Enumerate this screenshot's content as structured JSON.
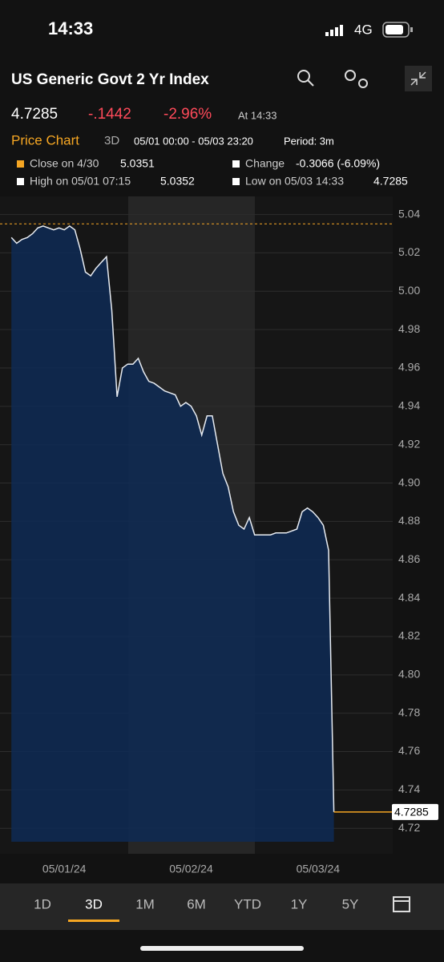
{
  "status_bar": {
    "time": "14:33",
    "network": "4G"
  },
  "header": {
    "title": "US Generic Govt 2 Yr Index"
  },
  "quote": {
    "price": "4.7285",
    "change": "-.1442",
    "change_pct": "-2.96%",
    "time": "At 14:33"
  },
  "chart_header": {
    "title": "Price Chart",
    "range": "3D",
    "window": "05/01 00:00 - 05/03 23:20",
    "period": "Period: 3m"
  },
  "legend": {
    "close_label": "Close on 4/30",
    "close_value": 5.0351,
    "change_label": "Change",
    "change_value": "-0.3066 (-6.09%)",
    "high_label": "High on 05/01 07:15",
    "high_value": 5.0352,
    "low_label": "Low on 05/03 14:33",
    "low_value": 4.7285
  },
  "chart_data": {
    "type": "area",
    "color": "#e8ecf2",
    "fill": "#0e2a55",
    "categories": [
      null,
      null,
      null,
      null,
      null,
      null,
      null,
      null,
      null,
      null,
      null,
      null,
      "05/01/24",
      null,
      null,
      null,
      null,
      null,
      null,
      null,
      null,
      null,
      null,
      null,
      null,
      null,
      null,
      null,
      null,
      null,
      null,
      null,
      null,
      null,
      null,
      null,
      "05/02/24",
      null,
      null,
      null,
      null,
      null,
      null,
      null,
      null,
      null,
      null,
      null,
      null,
      null,
      null,
      null,
      null,
      null,
      null,
      null,
      null,
      null,
      null,
      null,
      "05/03/24",
      null,
      null,
      null,
      null,
      null,
      null,
      null,
      null,
      null,
      null,
      null
    ],
    "values": [
      null,
      null,
      5.028,
      5.025,
      5.027,
      5.028,
      5.03,
      5.033,
      5.034,
      5.033,
      5.032,
      5.033,
      5.032,
      5.034,
      5.032,
      5.022,
      5.01,
      5.008,
      5.012,
      5.015,
      5.018,
      4.99,
      4.945,
      4.96,
      4.962,
      4.962,
      4.965,
      4.958,
      4.953,
      4.952,
      4.95,
      4.948,
      4.947,
      4.946,
      4.94,
      4.942,
      4.94,
      4.935,
      4.925,
      4.935,
      4.935,
      4.92,
      4.905,
      4.898,
      4.885,
      4.878,
      4.876,
      4.882,
      4.873,
      4.873,
      4.873,
      4.873,
      4.874,
      4.874,
      4.874,
      4.875,
      4.876,
      4.885,
      4.887,
      4.885,
      4.882,
      4.878,
      4.865,
      4.7285,
      null,
      null,
      null,
      null,
      null,
      null,
      null,
      null
    ],
    "ylim": [
      4.713,
      5.044
    ],
    "yticks": [
      4.72,
      4.74,
      4.76,
      4.78,
      {
        "value": 4.8,
        "label": "4.80"
      },
      4.82,
      4.84,
      4.86,
      4.88,
      {
        "value": 4.9,
        "label": "4.90"
      },
      4.92,
      4.94,
      4.96,
      4.98,
      {
        "value": 5,
        "label": "5.00"
      },
      5.02,
      5.04
    ],
    "grid": true
  },
  "tabs": [
    "1D",
    "3D",
    "1M",
    "6M",
    "YTD",
    "1Y",
    "5Y"
  ]
}
